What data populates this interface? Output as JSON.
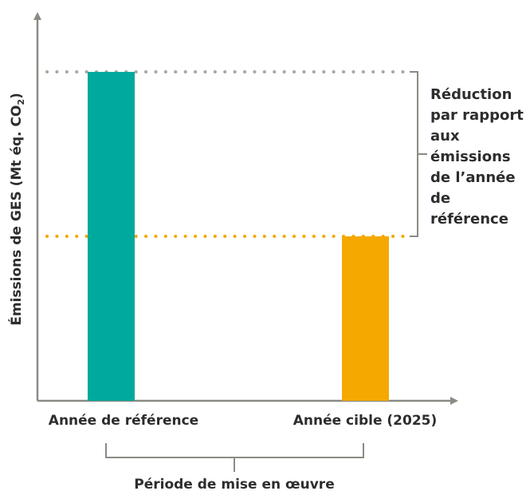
{
  "chart_data": {
    "type": "bar",
    "categories": [
      "Année de référence",
      "Année cible (2025)"
    ],
    "values": [
      100,
      50
    ],
    "ylim": [
      0,
      117
    ],
    "ylabel": "Émissions de GES (Mt éq. CO",
    "ylabel_subscript": "2",
    "ylabel_suffix": ")",
    "bracket_label": [
      "Réduction",
      "par rapport",
      "aux",
      "émissions",
      "de l’année",
      "de",
      "référence"
    ],
    "period_label": "Période de mise en œuvre"
  },
  "colors": {
    "axis": "#8a8b84",
    "reference_bar": "#00a99d",
    "target_bar": "#f5a800",
    "reference_line": "#a7a8a3",
    "target_line": "#f5a800",
    "text": "#2d2d2d"
  }
}
